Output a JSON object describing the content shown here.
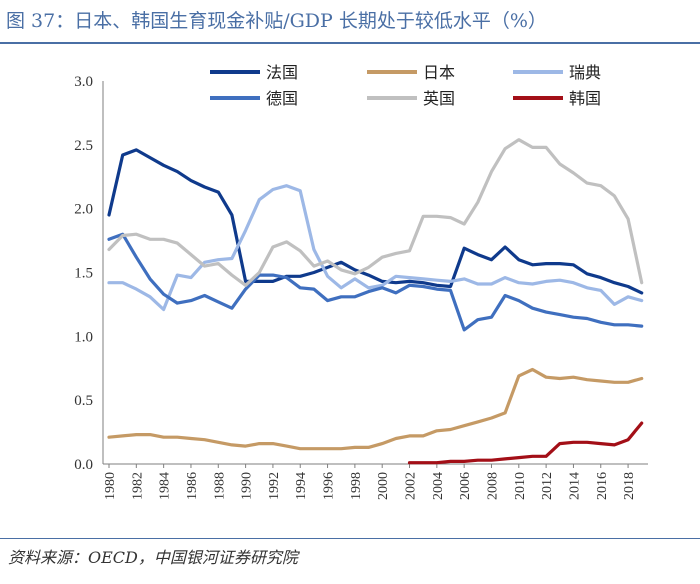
{
  "title": "图 37：日本、韩国生育现金补贴/GDP 长期处于较低水平（%）",
  "source": "资料来源：OECD，中国银河证券研究院",
  "chart_data": {
    "type": "line",
    "title": "图 37：日本、韩国生育现金补贴/GDP 长期处于较低水平（%）",
    "xlabel": "",
    "ylabel": "",
    "ylim": [
      0,
      3.0
    ],
    "yticks": [
      "0.0",
      "0.5",
      "1.0",
      "1.5",
      "2.0",
      "2.5",
      "3.0"
    ],
    "xticks": [
      "1980",
      "1982",
      "1984",
      "1986",
      "1988",
      "1990",
      "1992",
      "1994",
      "1996",
      "1998",
      "2000",
      "2002",
      "2004",
      "2006",
      "2008",
      "2010",
      "2012",
      "2014",
      "2016",
      "2018"
    ],
    "legend_position": "top",
    "series": [
      {
        "name": "法国",
        "color": "#0f3a8c",
        "start": 1980,
        "values": [
          1.95,
          2.42,
          2.46,
          2.4,
          2.34,
          2.29,
          2.22,
          2.17,
          2.13,
          1.95,
          1.43,
          1.43,
          1.43,
          1.47,
          1.47,
          1.5,
          1.54,
          1.58,
          1.52,
          1.48,
          1.43,
          1.42,
          1.43,
          1.42,
          1.4,
          1.39,
          1.69,
          1.64,
          1.6,
          1.7,
          1.6,
          1.56,
          1.57,
          1.57,
          1.56,
          1.49,
          1.46,
          1.42,
          1.39,
          1.34
        ]
      },
      {
        "name": "日本",
        "color": "#c59a65",
        "start": 1980,
        "values": [
          0.21,
          0.22,
          0.23,
          0.23,
          0.21,
          0.21,
          0.2,
          0.19,
          0.17,
          0.15,
          0.14,
          0.16,
          0.16,
          0.14,
          0.12,
          0.12,
          0.12,
          0.12,
          0.13,
          0.13,
          0.16,
          0.2,
          0.22,
          0.22,
          0.26,
          0.27,
          0.3,
          0.33,
          0.36,
          0.4,
          0.69,
          0.74,
          0.68,
          0.67,
          0.68,
          0.66,
          0.65,
          0.64,
          0.64,
          0.67
        ]
      },
      {
        "name": "瑞典",
        "color": "#9db8e6",
        "start": 1980,
        "values": [
          1.42,
          1.42,
          1.37,
          1.31,
          1.21,
          1.48,
          1.46,
          1.58,
          1.6,
          1.61,
          1.83,
          2.07,
          2.15,
          2.18,
          2.14,
          1.68,
          1.47,
          1.38,
          1.45,
          1.38,
          1.4,
          1.47,
          1.46,
          1.45,
          1.44,
          1.43,
          1.45,
          1.41,
          1.41,
          1.46,
          1.42,
          1.41,
          1.43,
          1.44,
          1.42,
          1.38,
          1.36,
          1.25,
          1.31,
          1.28
        ]
      },
      {
        "name": "德国",
        "color": "#3f6fbf",
        "start": 1980,
        "values": [
          1.76,
          1.8,
          1.62,
          1.45,
          1.33,
          1.26,
          1.28,
          1.32,
          1.27,
          1.22,
          1.37,
          1.48,
          1.48,
          1.46,
          1.38,
          1.37,
          1.28,
          1.31,
          1.31,
          1.35,
          1.38,
          1.34,
          1.4,
          1.39,
          1.37,
          1.36,
          1.05,
          1.13,
          1.15,
          1.32,
          1.28,
          1.22,
          1.19,
          1.17,
          1.15,
          1.14,
          1.11,
          1.09,
          1.09,
          1.08
        ]
      },
      {
        "name": "英国",
        "color": "#c0c0c0",
        "start": 1980,
        "values": [
          1.68,
          1.79,
          1.8,
          1.76,
          1.76,
          1.73,
          1.64,
          1.55,
          1.57,
          1.48,
          1.4,
          1.5,
          1.7,
          1.74,
          1.67,
          1.55,
          1.59,
          1.52,
          1.49,
          1.54,
          1.62,
          1.65,
          1.67,
          1.94,
          1.94,
          1.93,
          1.88,
          2.05,
          2.29,
          2.47,
          2.54,
          2.48,
          2.48,
          2.35,
          2.28,
          2.2,
          2.18,
          2.1,
          1.92,
          1.42
        ]
      },
      {
        "name": "韩国",
        "color": "#a30f17",
        "start": 2002,
        "values": [
          0.01,
          0.01,
          0.01,
          0.02,
          0.02,
          0.03,
          0.03,
          0.04,
          0.05,
          0.06,
          0.06,
          0.16,
          0.17,
          0.17,
          0.16,
          0.15,
          0.19,
          0.32
        ]
      }
    ]
  }
}
